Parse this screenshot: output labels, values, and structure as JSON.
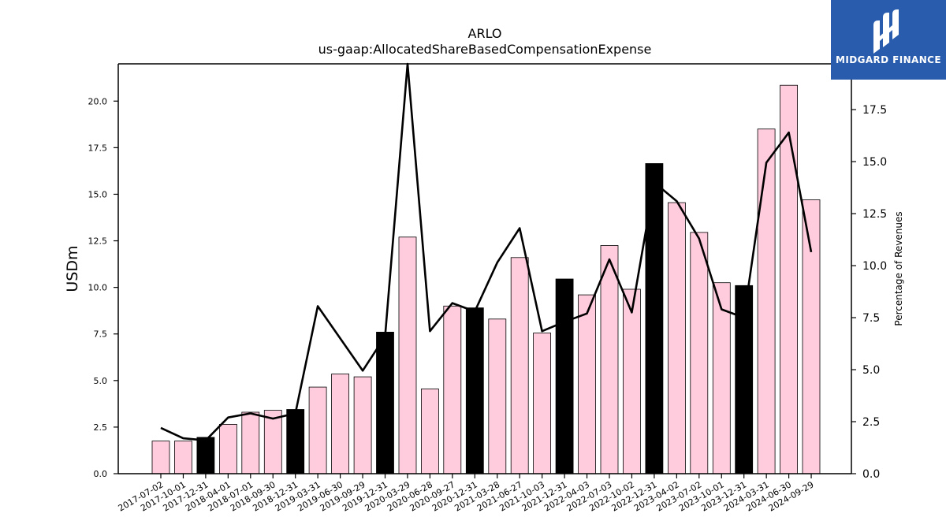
{
  "chart_data": {
    "type": "bar",
    "title": "ARLO",
    "subtitle": "us-gaap:AllocatedShareBasedCompensationExpense",
    "ylabel": "USDm",
    "y2label": "Percentage of Revenues",
    "ylim": [
      0,
      22
    ],
    "y2lim": [
      0,
      19.7
    ],
    "yticks": [
      "0.0",
      "2.5",
      "5.0",
      "7.5",
      "10.0",
      "12.5",
      "15.0",
      "17.5",
      "20.0"
    ],
    "y2ticks": [
      "0.0",
      "2.5",
      "5.0",
      "7.5",
      "10.0",
      "12.5",
      "15.0",
      "17.5"
    ],
    "categories": [
      "2017-07-02",
      "2017-10-01",
      "2017-12-31",
      "2018-04-01",
      "2018-07-01",
      "2018-09-30",
      "2018-12-31",
      "2019-03-31",
      "2019-06-30",
      "2019-09-29",
      "2019-12-31",
      "2020-03-29",
      "2020-06-28",
      "2020-09-27",
      "2020-12-31",
      "2021-03-28",
      "2021-06-27",
      "2021-10-03",
      "2021-12-31",
      "2022-04-03",
      "2022-07-03",
      "2022-10-02",
      "2022-12-31",
      "2023-04-02",
      "2023-07-02",
      "2023-10-01",
      "2023-12-31",
      "2024-03-31",
      "2024-06-30",
      "2024-09-29"
    ],
    "series": [
      {
        "kind": "bar",
        "values": [
          1.75,
          1.75,
          1.95,
          2.65,
          3.3,
          3.4,
          3.45,
          4.65,
          5.35,
          5.2,
          7.6,
          12.7,
          4.55,
          9.0,
          8.9,
          8.3,
          11.6,
          7.55,
          10.45,
          9.6,
          12.25,
          9.9,
          16.65,
          14.55,
          12.95,
          10.25,
          10.1,
          18.5,
          20.85,
          14.7
        ],
        "colors": [
          "#ffccdd",
          "#ffccdd",
          "#000000",
          "#ffccdd",
          "#ffccdd",
          "#ffccdd",
          "#000000",
          "#ffccdd",
          "#ffccdd",
          "#ffccdd",
          "#000000",
          "#ffccdd",
          "#ffccdd",
          "#ffccdd",
          "#000000",
          "#ffccdd",
          "#ffccdd",
          "#ffccdd",
          "#000000",
          "#ffccdd",
          "#ffccdd",
          "#ffccdd",
          "#000000",
          "#ffccdd",
          "#ffccdd",
          "#ffccdd",
          "#000000",
          "#ffccdd",
          "#ffccdd",
          "#ffccdd"
        ]
      },
      {
        "kind": "line",
        "axis": "right",
        "color": "#000000",
        "values": [
          2.2,
          1.7,
          1.6,
          2.7,
          2.9,
          2.65,
          2.9,
          8.05,
          6.5,
          4.95,
          6.6,
          19.7,
          6.85,
          8.2,
          7.8,
          10.15,
          11.8,
          6.85,
          7.3,
          7.7,
          10.3,
          7.75,
          14.0,
          13.1,
          11.3,
          7.9,
          7.5,
          14.95,
          16.4,
          10.65
        ]
      }
    ],
    "grid": false
  },
  "logo": {
    "text": "MIDGARD FINANCE"
  }
}
